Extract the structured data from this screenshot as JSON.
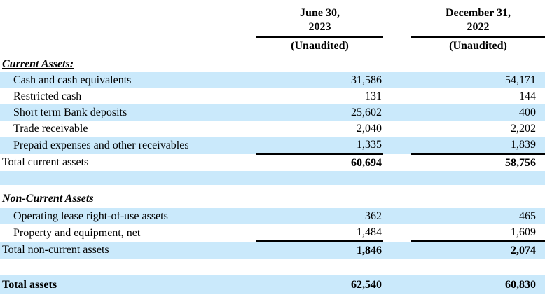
{
  "document": {
    "kind": "balance-sheet-table",
    "colors": {
      "row_highlight": "#cae9fb",
      "text": "#000000",
      "rule_line": "#000000"
    }
  },
  "header": {
    "col1": {
      "line1": "June 30,",
      "line2": "2023",
      "subtitle": "(Unaudited)"
    },
    "col2": {
      "line1": "December 31,",
      "line2": "2022",
      "subtitle": "(Unaudited)"
    }
  },
  "rows": [
    {
      "type": "section",
      "shade": false,
      "rule": false,
      "label": "Current Assets:",
      "v1": "",
      "v2": ""
    },
    {
      "type": "item",
      "shade": true,
      "rule": false,
      "label": "Cash and cash equivalents",
      "v1": "31,586",
      "v2": "54,171"
    },
    {
      "type": "item",
      "shade": false,
      "rule": false,
      "label": "Restricted cash",
      "v1": "131",
      "v2": "144"
    },
    {
      "type": "item",
      "shade": true,
      "rule": false,
      "label": "Short term Bank deposits",
      "v1": "25,602",
      "v2": "400"
    },
    {
      "type": "item",
      "shade": false,
      "rule": false,
      "label": "Trade receivable",
      "v1": "2,040",
      "v2": "2,202"
    },
    {
      "type": "item",
      "shade": true,
      "rule": true,
      "label": "Prepaid expenses and other receivables",
      "v1": "1,335",
      "v2": "1,839"
    },
    {
      "type": "total",
      "shade": false,
      "rule": false,
      "label": "Total current assets",
      "v1": "60,694",
      "v2": "58,756"
    },
    {
      "type": "blank",
      "shade": true,
      "rule": false,
      "label": "",
      "v1": "",
      "v2": ""
    },
    {
      "type": "section",
      "shade": false,
      "rule": false,
      "label": "Non-Current Assets",
      "v1": "",
      "v2": ""
    },
    {
      "type": "item",
      "shade": true,
      "rule": false,
      "label": "Operating lease right-of-use assets",
      "v1": "362",
      "v2": "465"
    },
    {
      "type": "item",
      "shade": false,
      "rule": true,
      "label": "Property and equipment, net",
      "v1": "1,484",
      "v2": "1,609"
    },
    {
      "type": "total",
      "shade": true,
      "rule": false,
      "label": "Total non-current assets",
      "v1": "1,846",
      "v2": "2,074"
    },
    {
      "type": "blank",
      "shade": false,
      "rule": false,
      "label": "",
      "v1": "",
      "v2": ""
    },
    {
      "type": "grandtotal",
      "shade": true,
      "rule": false,
      "label": "Total assets",
      "v1": "62,540",
      "v2": "60,830"
    }
  ]
}
